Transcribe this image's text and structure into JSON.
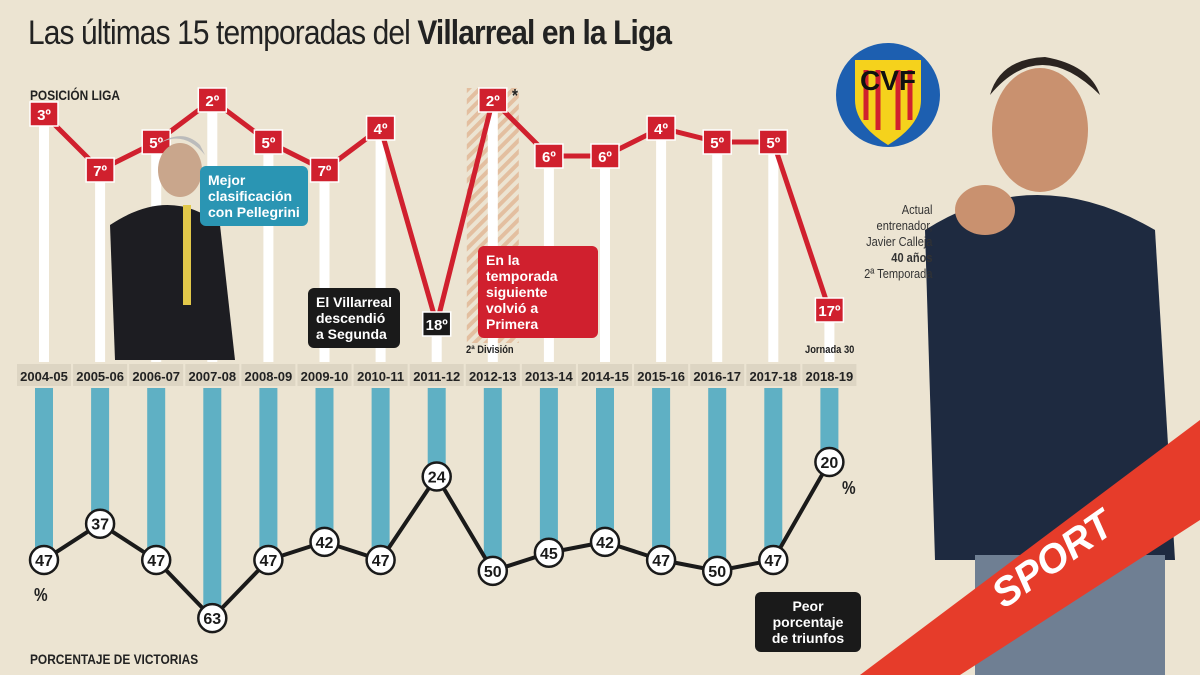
{
  "title_regular": "Las últimas 15 temporadas del",
  "title_bold": "Villarreal en la Liga",
  "chart_data": [
    {
      "type": "line",
      "title": "POSICIÓN LIGA",
      "categories": [
        "2004-05",
        "2005-06",
        "2006-07",
        "2007-08",
        "2008-09",
        "2009-10",
        "2010-11",
        "2011-12",
        "2012-13",
        "2013-14",
        "2014-15",
        "2015-16",
        "2016-17",
        "2017-18",
        "2018-19"
      ],
      "values": [
        3,
        7,
        5,
        2,
        5,
        7,
        4,
        18,
        2,
        6,
        6,
        4,
        5,
        5,
        17
      ],
      "labels": [
        "3º",
        "7º",
        "5º",
        "2º",
        "5º",
        "7º",
        "4º",
        "18º",
        "2º",
        "6º",
        "6º",
        "4º",
        "5º",
        "5º",
        "17º"
      ],
      "y_inverted": true,
      "color": "#d0202e"
    },
    {
      "type": "line",
      "title": "PORCENTAJE DE VICTORIAS",
      "categories": [
        "2004-05",
        "2005-06",
        "2006-07",
        "2007-08",
        "2008-09",
        "2009-10",
        "2010-11",
        "2011-12",
        "2012-13",
        "2013-14",
        "2014-15",
        "2015-16",
        "2016-17",
        "2017-18",
        "2018-19"
      ],
      "values": [
        47,
        37,
        47,
        63,
        47,
        42,
        47,
        24,
        50,
        45,
        42,
        47,
        50,
        47,
        20
      ],
      "unit": "%",
      "bar_color": "#5fb0c4"
    }
  ],
  "annotations": {
    "pellegrini": "Mejor clasificación con Pellegrini",
    "descenso": "El Villarreal descendió a Segunda",
    "volvio": "En la temporada siguiente volvió a Primera",
    "segunda_mark": "*",
    "segunda": "2ª División",
    "jornada": "Jornada 30",
    "peor": "Peor porcentaje de triunfos",
    "pct_left": "%",
    "pct_right": "%"
  },
  "coach": {
    "line1": "Actual",
    "line2": "entrenador,",
    "line3": "Javier Calleja",
    "age": "40 años",
    "season": "2ª Temporada"
  },
  "logo_text": "CVF",
  "brand": "SPORT"
}
